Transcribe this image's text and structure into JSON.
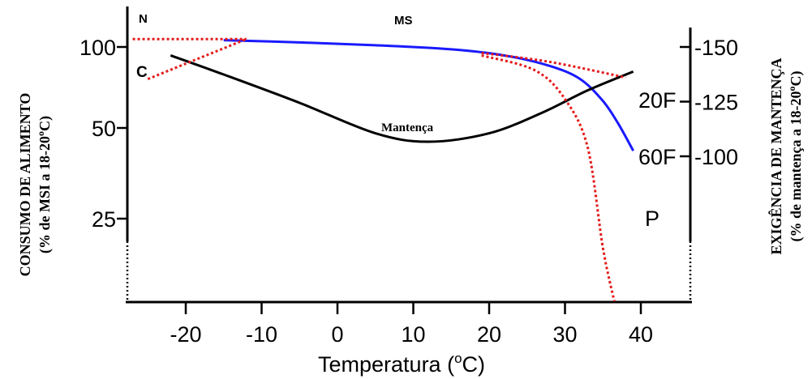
{
  "chart_data": {
    "type": "line",
    "xlabel": "Temperatura (°C)",
    "xlabel_main": "Temperatura (",
    "xlabel_sup": "o",
    "xlabel_tail": "C)",
    "x_ticks": [
      -20,
      -10,
      0,
      10,
      20,
      30,
      40
    ],
    "xlim": [
      -27,
      46
    ],
    "ylabel_left_line1_main": "CONSUMO DE ALIMENTO",
    "ylabel_left_line2_main": "(% de MSI a 18-20",
    "ylabel_left_line2_sup": "o",
    "ylabel_left_line2_tail": "C)",
    "ylabel_right_line1_main": "EXIGÊNCIA DE MANTENÇA",
    "ylabel_right_line2_main": "(% de mantença a 18-20",
    "ylabel_right_line2_sup": "o",
    "ylabel_right_line2_tail": "C)",
    "left_ticks": [
      {
        "label": "100",
        "value": 100
      },
      {
        "label": "50",
        "value": 50
      },
      {
        "label": "25",
        "value": 25
      }
    ],
    "right_ticks": [
      {
        "label": "150",
        "value": 150
      },
      {
        "label": "125",
        "value": 125
      },
      {
        "label": "100",
        "value": 100
      }
    ],
    "top_labels": {
      "left": "N",
      "center": "MS"
    },
    "curve_labels": {
      "c": "C",
      "f20": "20F",
      "f60": "60F",
      "p": "P",
      "mantenca": "Mantença"
    },
    "series": [
      {
        "color": "#1a1aff",
        "style": "solid",
        "points": [
          [
            -15,
            106
          ],
          [
            -5,
            104
          ],
          [
            5,
            101.5
          ],
          [
            15,
            98
          ],
          [
            22,
            93
          ],
          [
            28,
            85
          ],
          [
            32,
            76
          ],
          [
            35,
            63
          ],
          [
            37,
            52
          ],
          [
            39,
            42
          ]
        ]
      },
      {
        "color": "#000000",
        "style": "solid",
        "points": [
          [
            -22,
            93
          ],
          [
            -15,
            79
          ],
          [
            -5,
            62
          ],
          [
            5,
            48
          ],
          [
            12,
            45
          ],
          [
            20,
            48
          ],
          [
            27,
            57
          ],
          [
            33,
            69
          ],
          [
            39,
            81
          ]
        ]
      },
      {
        "color": "#e41a1a",
        "style": "dotted",
        "points": [
          [
            -27,
            107
          ],
          [
            -12,
            107
          ]
        ]
      },
      {
        "color": "#e41a1a",
        "style": "dotted",
        "points": [
          [
            -25,
            76
          ],
          [
            -12,
            107
          ]
        ]
      },
      {
        "color": "#e41a1a",
        "style": "dotted",
        "points": [
          [
            19,
            95
          ],
          [
            28,
            88
          ],
          [
            38,
            77
          ]
        ]
      },
      {
        "color": "#e41a1a",
        "style": "dotted",
        "points": [
          [
            19,
            93
          ],
          [
            26,
            82
          ],
          [
            30,
            64
          ],
          [
            33,
            43
          ],
          [
            35,
            20
          ],
          [
            36.5,
            0
          ]
        ]
      }
    ]
  }
}
